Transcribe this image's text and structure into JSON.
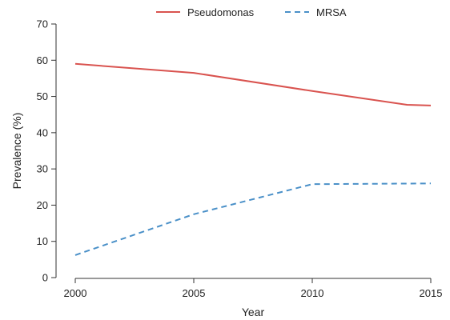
{
  "chart_data": {
    "type": "line",
    "title": "",
    "xlabel": "Year",
    "ylabel": "Prevalence (%)",
    "xlim": [
      2000,
      2015
    ],
    "ylim": [
      0,
      70
    ],
    "x_ticks": [
      "2000",
      "2005",
      "2010",
      "2015"
    ],
    "y_ticks": [
      "0",
      "10",
      "20",
      "30",
      "40",
      "50",
      "60",
      "70"
    ],
    "grid": false,
    "legend_position": "top-center",
    "series": [
      {
        "name": "Pseudomonas",
        "color": "#d9534f",
        "dash": "solid",
        "x": [
          2000,
          2005,
          2010,
          2014,
          2015
        ],
        "y": [
          59,
          56.5,
          51.5,
          47.7,
          47.5
        ]
      },
      {
        "name": "MRSA",
        "color": "#4a90c8",
        "dash": "dashed",
        "x": [
          2000,
          2005,
          2010,
          2015
        ],
        "y": [
          6.2,
          17.5,
          25.8,
          26
        ]
      }
    ]
  }
}
